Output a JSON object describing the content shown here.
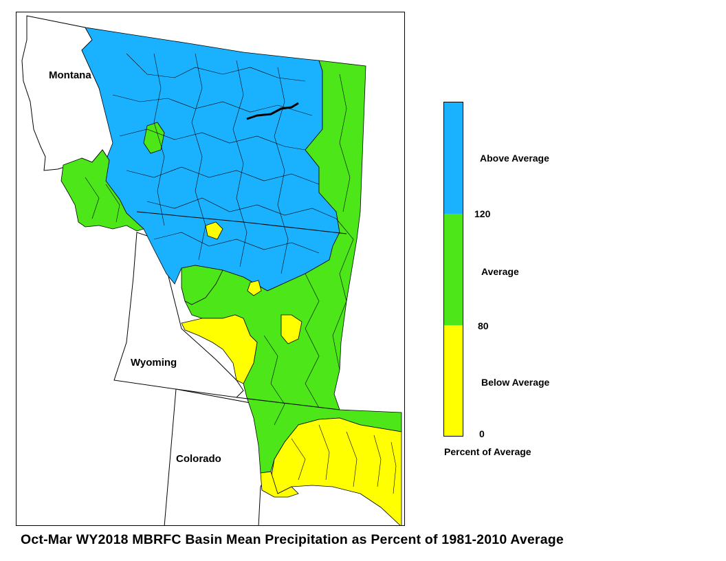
{
  "title": "Oct-Mar WY2018 MBRFC Basin Mean Precipitation as Percent of 1981-2010 Average",
  "state_labels": {
    "montana": "Montana",
    "wyoming": "Wyoming",
    "colorado": "Colorado"
  },
  "legend": {
    "title": "Percent of Average",
    "classes": [
      {
        "label": "Above Average",
        "color": "#1ab2ff",
        "min": 120
      },
      {
        "label": "Average",
        "color": "#4ce619",
        "min": 80,
        "max": 120
      },
      {
        "label": "Below Average",
        "color": "#ffff00",
        "min": 0,
        "max": 80
      }
    ],
    "tick_labels": [
      "120",
      "80",
      "0"
    ]
  },
  "colors": {
    "above": "#1ab2ff",
    "average": "#4ce619",
    "below": "#ffff00",
    "boundary": "#000000"
  }
}
